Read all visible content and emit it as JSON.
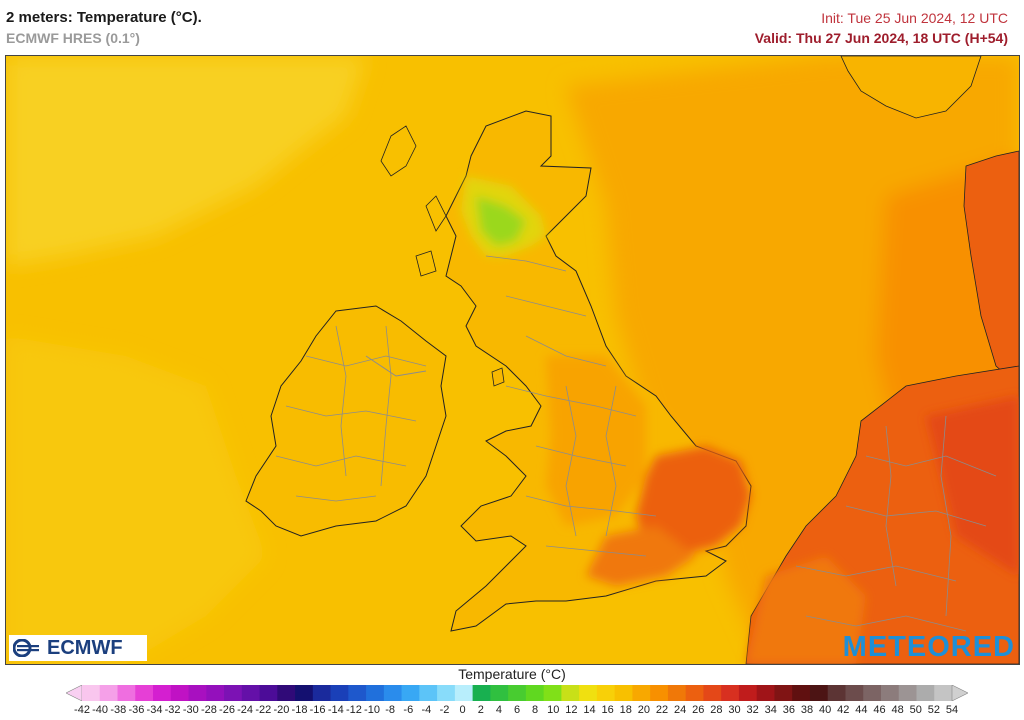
{
  "header": {
    "title": "2 meters: Temperature (°C).",
    "model": "ECMWF HRES (0.1°)",
    "init": "Init: Tue 25 Jun 2024, 12 UTC",
    "valid": "Valid: Thu 27 Jun 2024, 18 UTC (H+54)"
  },
  "logos": {
    "left": "ECMWF",
    "right": "METEORED"
  },
  "legend": {
    "title": "Temperature (°C)",
    "ticks": [
      "-42",
      "-40",
      "-38",
      "-36",
      "-34",
      "-32",
      "-30",
      "-28",
      "-26",
      "-24",
      "-22",
      "-20",
      "-18",
      "-16",
      "-14",
      "-12",
      "-10",
      "-8",
      "-6",
      "-4",
      "-2",
      "0",
      "2",
      "4",
      "6",
      "8",
      "10",
      "12",
      "14",
      "16",
      "18",
      "20",
      "22",
      "24",
      "26",
      "28",
      "30",
      "32",
      "34",
      "36",
      "38",
      "40",
      "42",
      "44",
      "46",
      "48",
      "50",
      "52",
      "54"
    ],
    "colors": [
      "#f9c6ee",
      "#f5a0e8",
      "#ef6ee0",
      "#e63fd6",
      "#d41fd0",
      "#c012c4",
      "#a810c0",
      "#9410bc",
      "#7c12b4",
      "#6410a8",
      "#4c0c98",
      "#300a78",
      "#141070",
      "#1a2a9c",
      "#1a40b8",
      "#1e58cc",
      "#2070dc",
      "#2a8cec",
      "#38a8f4",
      "#5cc4f8",
      "#88dcfa",
      "#b8eefc",
      "#18b050",
      "#30c040",
      "#48cc30",
      "#60d820",
      "#80e018",
      "#c8e018",
      "#f0e010",
      "#f8d008",
      "#f8c000",
      "#f8a800",
      "#f89000",
      "#f07808",
      "#ec6010",
      "#e44818",
      "#d83020",
      "#c01c1c",
      "#a01418",
      "#801414",
      "#601010",
      "#4c1414",
      "#5c3434",
      "#6c4c4c",
      "#7c6464",
      "#8c7c7c",
      "#9c9494",
      "#acacac",
      "#c4c4c4"
    ],
    "color_under": "#f9d0f2",
    "color_over": "#d0d0d0"
  }
}
